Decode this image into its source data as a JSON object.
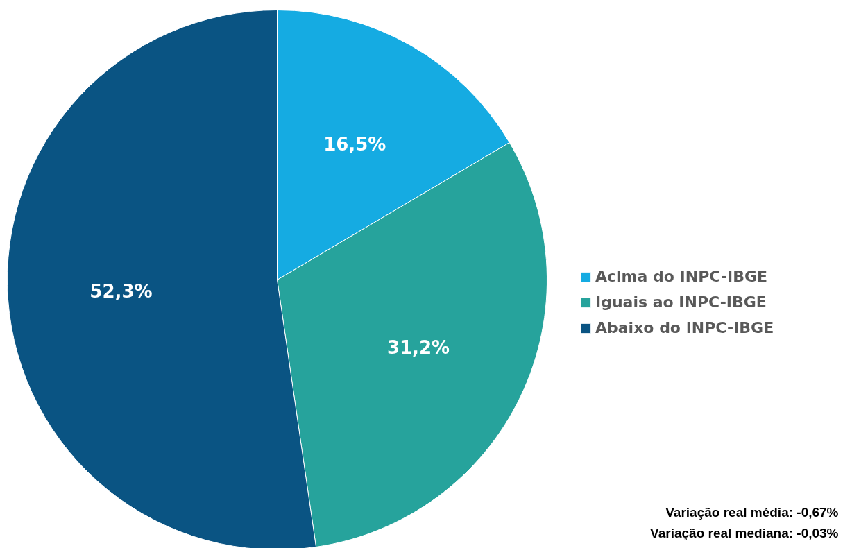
{
  "chart_data": {
    "type": "pie",
    "categories": [
      "Acima do INPC-IBGE",
      "Iguais ao INPC-IBGE",
      "Abaixo do INPC-IBGE"
    ],
    "values": [
      16.5,
      31.2,
      52.3
    ],
    "colors": [
      "#15abe2",
      "#26a39c",
      "#0a5483"
    ],
    "value_labels": [
      "16,5%",
      "31,2%",
      "52,3%"
    ],
    "legend": "right",
    "annotations": [
      "Variação real média: -0,67%",
      "Variação real mediana: -0,03%"
    ]
  }
}
